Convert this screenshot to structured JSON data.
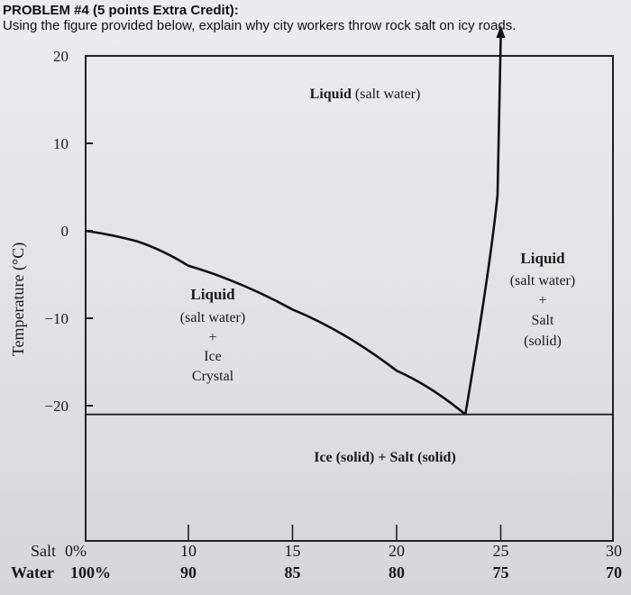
{
  "header": {
    "title": "PROBLEM #4 (5 points Extra Credit):",
    "prompt": "Using the figure provided below, explain why city workers throw rock salt on icy roads."
  },
  "chart_data": {
    "type": "phase-diagram",
    "ylabel": "Temperature (°C)",
    "y_ticks": [
      "20",
      "10",
      "0",
      "−10",
      "−20"
    ],
    "x_axis_rows": [
      {
        "name": "Salt",
        "start": "0%",
        "ticks": [
          "10",
          "15",
          "20",
          "25",
          "30"
        ]
      },
      {
        "name": "Water",
        "start": "100%",
        "ticks": [
          "90",
          "85",
          "80",
          "75",
          "70"
        ]
      }
    ],
    "regions": {
      "top": "Liquid (salt water)",
      "left": [
        "Liquid",
        "(salt water)",
        "+",
        "Ice",
        "Crystal"
      ],
      "right": [
        "Liquid",
        "(salt water)",
        "+",
        "Salt",
        "(solid)"
      ],
      "bottom": "Ice (solid) + Salt (solid)"
    },
    "freezing_curve": [
      [
        0,
        0
      ],
      [
        5,
        -1.2
      ],
      [
        10,
        -4
      ],
      [
        15,
        -9
      ],
      [
        20,
        -16
      ],
      [
        23.3,
        -21
      ]
    ],
    "solubility_curve": [
      [
        23.3,
        -21
      ],
      [
        24.5,
        0
      ],
      [
        25,
        20
      ]
    ],
    "eutectic": {
      "salt_pct": 23.3,
      "temp_c": -21
    }
  }
}
